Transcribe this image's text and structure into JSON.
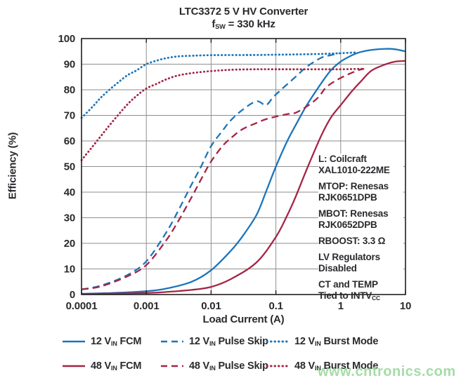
{
  "header": {
    "title": "LTC3372 5 V HV Converter",
    "subtitle": {
      "pre": "f",
      "sub": "SW",
      "post": " = 330 kHz"
    }
  },
  "watermark": {
    "text": "www.cntronics.com",
    "color": "#96d696"
  },
  "annotation": {
    "entries": [
      {
        "lines": [
          "L: Coilcraft",
          "XAL1010-222ME"
        ]
      },
      {
        "lines": [
          "MTOP: Renesas",
          "RJK0651DPB"
        ]
      },
      {
        "lines": [
          "MBOT: Renesas",
          "RJK0652DPB"
        ]
      },
      {
        "lines": [
          "RBOOST: 3.3 Ω"
        ]
      },
      {
        "lines": [
          "LV Regulators",
          "Disabled"
        ]
      },
      {
        "lines": [
          "CT and TEMP",
          {
            "pre": "Tied to INTV",
            "sub": "CC"
          }
        ]
      }
    ]
  },
  "legend": {
    "items": [
      {
        "pre": "12 V",
        "sub": "IN",
        "post": " FCM",
        "style": "solid",
        "color": "blue"
      },
      {
        "pre": "12 V",
        "sub": "IN",
        "post": " Pulse Skip",
        "style": "dashed",
        "color": "blue"
      },
      {
        "pre": "12 V",
        "sub": "IN",
        "post": " Burst Mode",
        "style": "dotted",
        "color": "blue"
      },
      {
        "pre": "48 V",
        "sub": "IN",
        "post": " FCM",
        "style": "solid",
        "color": "crimson"
      },
      {
        "pre": "48 V",
        "sub": "IN",
        "post": " Pulse Skip",
        "style": "dashed",
        "color": "crimson"
      },
      {
        "pre": "48 V",
        "sub": "IN",
        "post": " Burst Mode",
        "style": "dotted",
        "color": "crimson"
      }
    ]
  },
  "chart_data": {
    "type": "line",
    "title": "LTC3372 5 V HV Converter",
    "subtitle": "fSW = 330 kHz",
    "grid": true,
    "colors": {
      "blue": "#1b75bc",
      "crimson": "#a42545"
    },
    "x_axis": {
      "label": "Load Current (A)",
      "scale": "log",
      "min": 0.0001,
      "max": 10,
      "ticks": [
        {
          "value": 0.0001,
          "label": "0.0001"
        },
        {
          "value": 0.001,
          "label": "0.001"
        },
        {
          "value": 0.01,
          "label": "0.01"
        },
        {
          "value": 0.1,
          "label": "0.1"
        },
        {
          "value": 1,
          "label": "1"
        },
        {
          "value": 10,
          "label": "10"
        }
      ]
    },
    "y_axis": {
      "label": "Efficiency (%)",
      "min": 0,
      "max": 100,
      "ticks": [
        0,
        10,
        20,
        30,
        40,
        50,
        60,
        70,
        80,
        90,
        100
      ]
    },
    "series": [
      {
        "id": "12vin-fcm",
        "name": "12 VIN FCM",
        "style": "solid",
        "color": "blue",
        "points": [
          [
            0.0001,
            0.3
          ],
          [
            0.0003,
            0.6
          ],
          [
            0.001,
            1.3
          ],
          [
            0.002,
            2.3
          ],
          [
            0.005,
            5
          ],
          [
            0.01,
            9.5
          ],
          [
            0.02,
            17
          ],
          [
            0.03,
            22.5
          ],
          [
            0.05,
            31
          ],
          [
            0.07,
            40
          ],
          [
            0.1,
            50
          ],
          [
            0.15,
            60
          ],
          [
            0.2,
            66
          ],
          [
            0.3,
            74
          ],
          [
            0.5,
            82.5
          ],
          [
            0.7,
            87.5
          ],
          [
            1,
            91
          ],
          [
            1.5,
            93.5
          ],
          [
            2,
            94.7
          ],
          [
            3,
            95.6
          ],
          [
            5,
            96
          ],
          [
            7,
            95.8
          ],
          [
            10,
            95
          ]
        ]
      },
      {
        "id": "48vin-fcm",
        "name": "48 VIN FCM",
        "style": "solid",
        "color": "crimson",
        "points": [
          [
            0.0001,
            0.2
          ],
          [
            0.001,
            0.6
          ],
          [
            0.002,
            1
          ],
          [
            0.005,
            1.8
          ],
          [
            0.01,
            3
          ],
          [
            0.02,
            6
          ],
          [
            0.05,
            12.5
          ],
          [
            0.1,
            22.5
          ],
          [
            0.15,
            31
          ],
          [
            0.2,
            38
          ],
          [
            0.3,
            49
          ],
          [
            0.5,
            62
          ],
          [
            0.7,
            69
          ],
          [
            1,
            74
          ],
          [
            1.5,
            79.5
          ],
          [
            2,
            83
          ],
          [
            3,
            87.5
          ],
          [
            5,
            90
          ],
          [
            7,
            91
          ],
          [
            10,
            91.3
          ]
        ]
      },
      {
        "id": "12vin-pulse-skip",
        "name": "12 VIN Pulse Skip",
        "style": "dashed",
        "color": "blue",
        "points": [
          [
            0.0001,
            2
          ],
          [
            0.0002,
            3.5
          ],
          [
            0.0005,
            7.5
          ],
          [
            0.001,
            13
          ],
          [
            0.002,
            24
          ],
          [
            0.003,
            32
          ],
          [
            0.005,
            43
          ],
          [
            0.007,
            50
          ],
          [
            0.01,
            58
          ],
          [
            0.015,
            64
          ],
          [
            0.02,
            68
          ],
          [
            0.03,
            72
          ],
          [
            0.05,
            75.5
          ],
          [
            0.07,
            74
          ],
          [
            0.09,
            77
          ],
          [
            0.12,
            80
          ],
          [
            0.2,
            85
          ],
          [
            0.3,
            89
          ],
          [
            0.5,
            92.5
          ],
          [
            0.7,
            93.5
          ],
          [
            1,
            94.3
          ]
        ]
      },
      {
        "id": "48vin-pulse-skip",
        "name": "48 VIN Pulse Skip",
        "style": "dashed",
        "color": "crimson",
        "points": [
          [
            0.0001,
            2
          ],
          [
            0.0002,
            3.2
          ],
          [
            0.0005,
            7
          ],
          [
            0.001,
            11.5
          ],
          [
            0.002,
            21
          ],
          [
            0.003,
            28
          ],
          [
            0.005,
            38
          ],
          [
            0.007,
            45
          ],
          [
            0.01,
            52
          ],
          [
            0.015,
            58
          ],
          [
            0.02,
            61
          ],
          [
            0.03,
            64.5
          ],
          [
            0.05,
            67
          ],
          [
            0.07,
            68.5
          ],
          [
            0.1,
            69.5
          ],
          [
            0.15,
            70.5
          ],
          [
            0.2,
            71
          ],
          [
            0.3,
            73.5
          ],
          [
            0.45,
            77
          ],
          [
            0.6,
            81
          ],
          [
            0.9,
            84
          ],
          [
            1.3,
            86
          ],
          [
            1.8,
            87.5
          ],
          [
            2.3,
            88.2
          ]
        ]
      },
      {
        "id": "12vin-burst-mode",
        "name": "12 VIN Burst Mode",
        "style": "dotted",
        "color": "blue",
        "points": [
          [
            0.0001,
            69
          ],
          [
            0.00015,
            73.5
          ],
          [
            0.0002,
            77
          ],
          [
            0.0003,
            81
          ],
          [
            0.0005,
            85.5
          ],
          [
            0.0007,
            87.5
          ],
          [
            0.001,
            90
          ],
          [
            0.0015,
            91.5
          ],
          [
            0.002,
            92.3
          ],
          [
            0.003,
            93
          ],
          [
            0.005,
            93.3
          ],
          [
            0.01,
            93.5
          ],
          [
            0.05,
            93.6
          ],
          [
            0.1,
            93.7
          ],
          [
            0.2,
            93.8
          ],
          [
            0.5,
            94
          ],
          [
            1,
            94.3
          ],
          [
            1.8,
            94.6
          ]
        ]
      },
      {
        "id": "48vin-burst-mode",
        "name": "48 VIN Burst Mode",
        "style": "dotted",
        "color": "crimson",
        "points": [
          [
            0.0001,
            52.5
          ],
          [
            0.00015,
            58
          ],
          [
            0.0002,
            62
          ],
          [
            0.0003,
            67.5
          ],
          [
            0.0005,
            74
          ],
          [
            0.0007,
            77.5
          ],
          [
            0.001,
            80.5
          ],
          [
            0.0015,
            82.5
          ],
          [
            0.002,
            84
          ],
          [
            0.003,
            85.5
          ],
          [
            0.005,
            86.5
          ],
          [
            0.01,
            87.3
          ],
          [
            0.02,
            87.8
          ],
          [
            0.05,
            88
          ],
          [
            0.1,
            88
          ],
          [
            0.5,
            88
          ],
          [
            1,
            88
          ],
          [
            2.2,
            88.2
          ]
        ]
      }
    ]
  }
}
